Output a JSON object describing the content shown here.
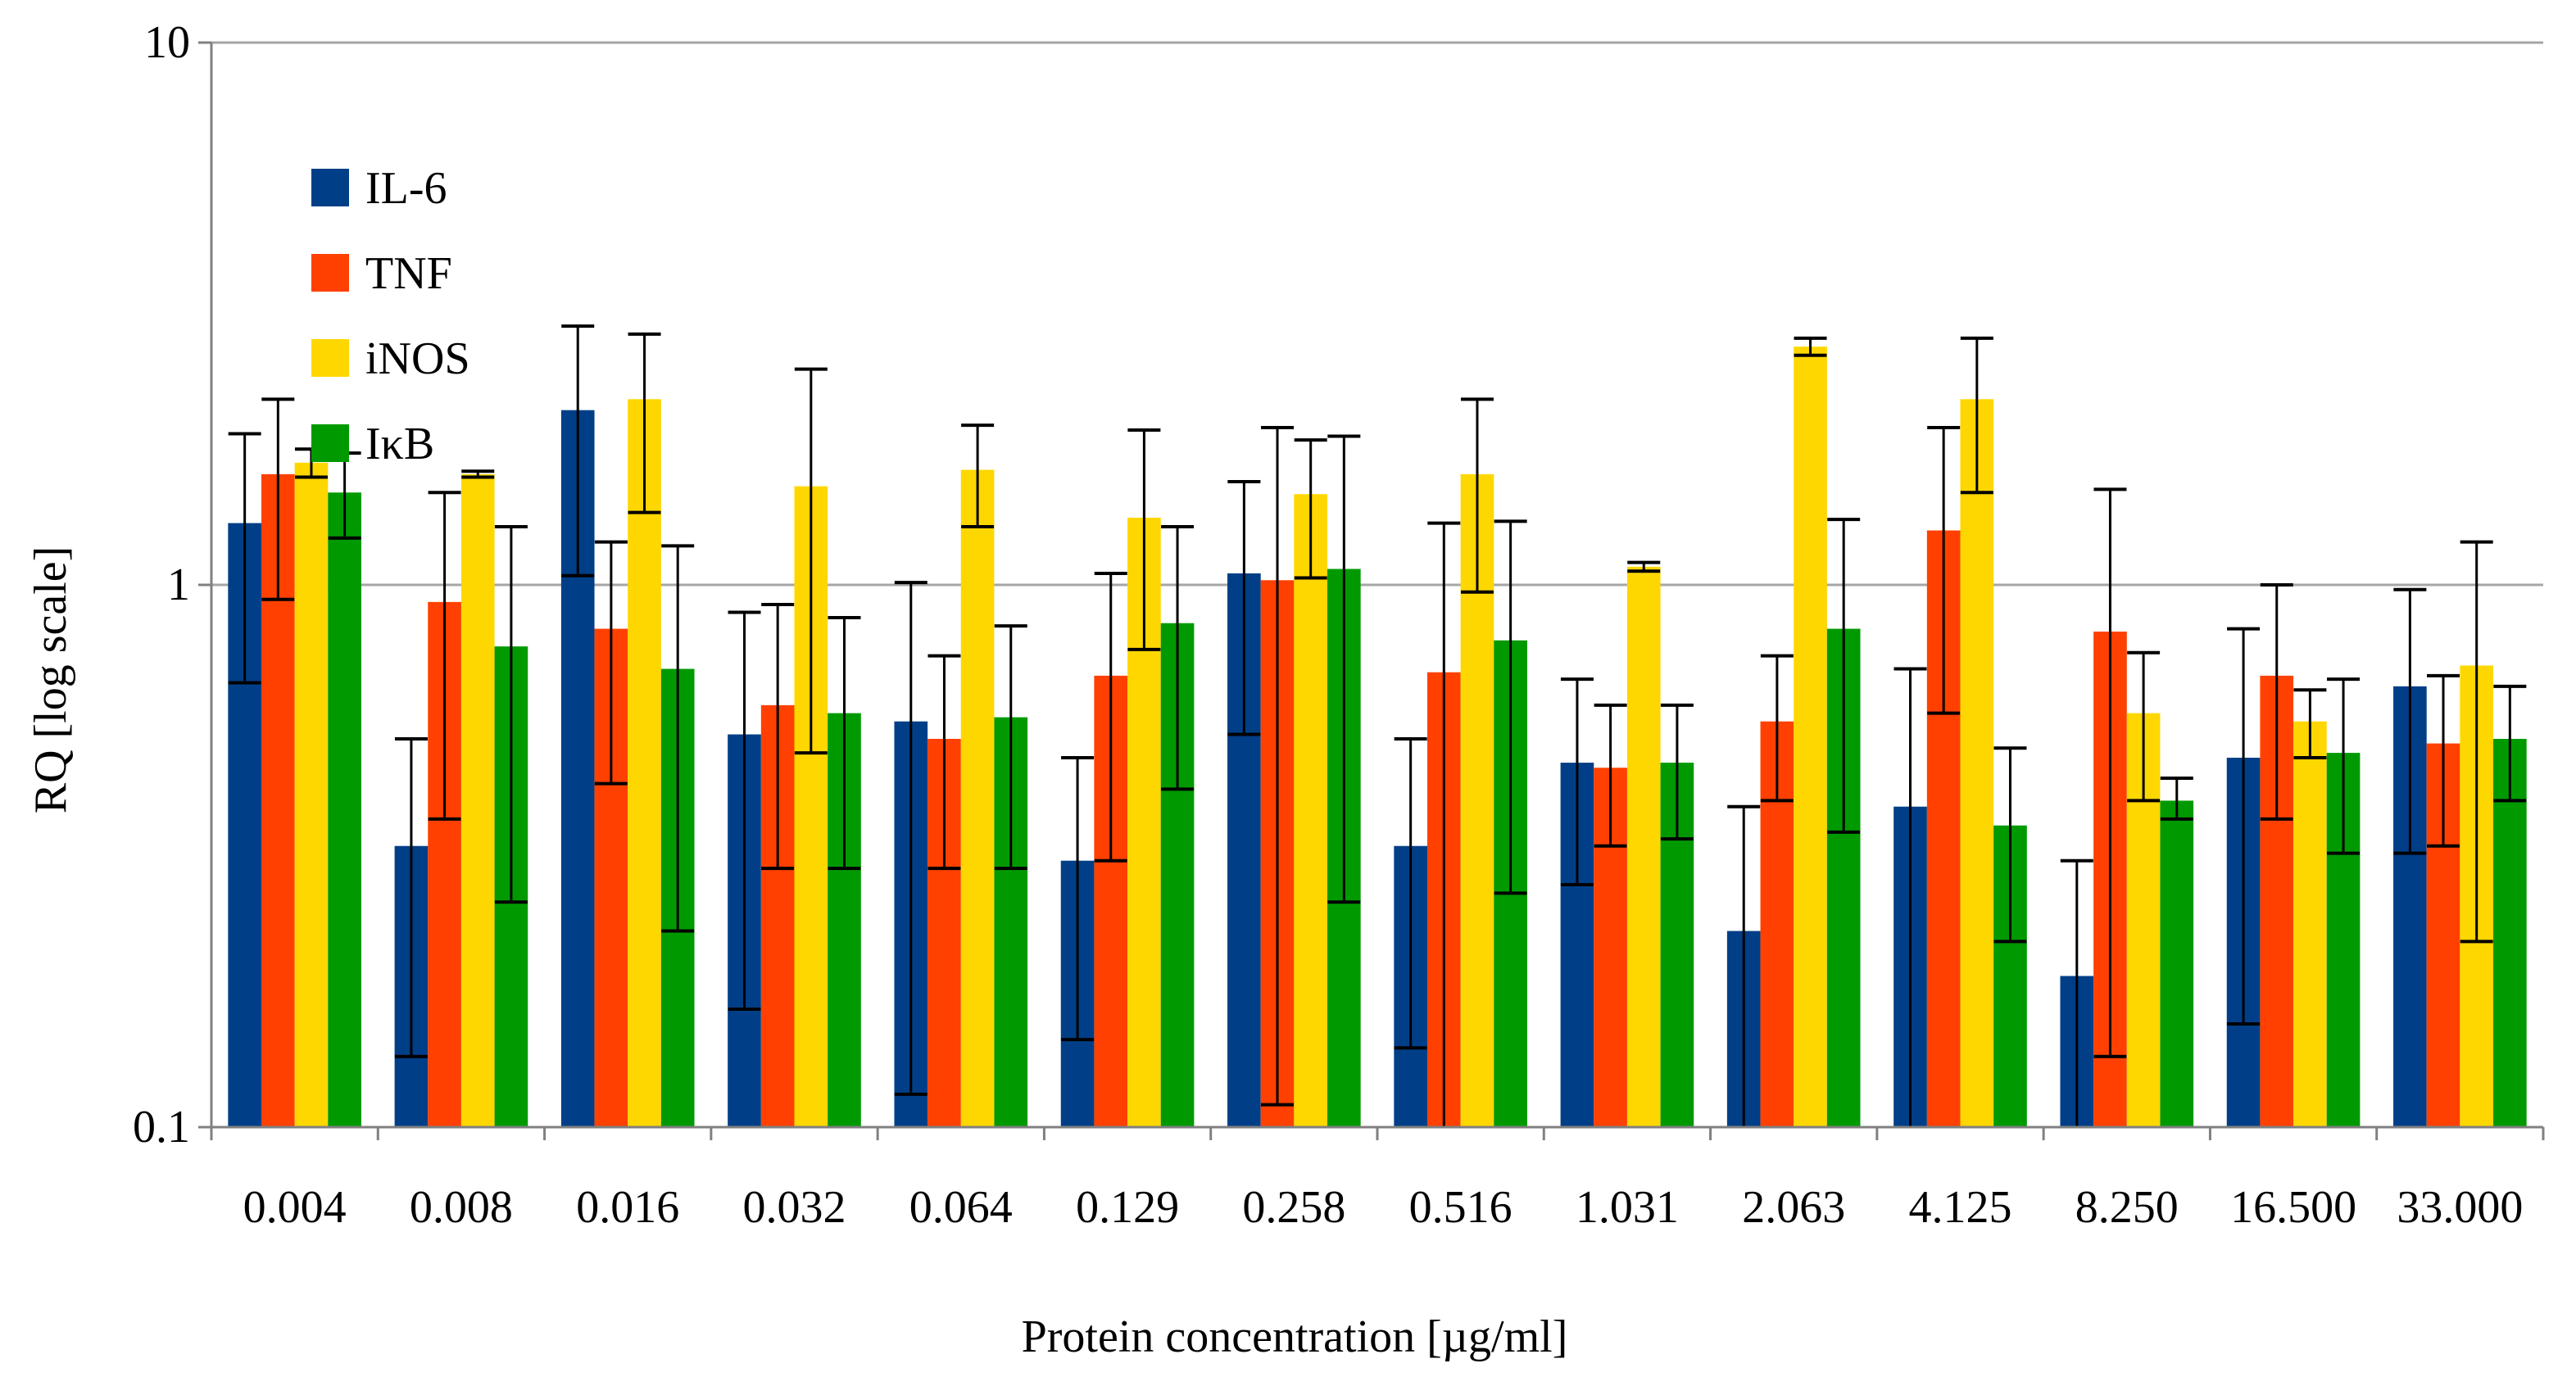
{
  "chart_data": {
    "type": "bar",
    "title": "",
    "xlabel": "Protein concentration [µg/ml]",
    "ylabel": "RQ [log scale]",
    "yscale": "log",
    "ylim": [
      0.1,
      10
    ],
    "yticks": [
      "0.1",
      "1",
      "10"
    ],
    "grid": "horizontal major lines",
    "legend_position": "top-left inside plot",
    "categories": [
      "0.004",
      "0.008",
      "0.016",
      "0.032",
      "0.064",
      "0.129",
      "0.258",
      "0.516",
      "1.031",
      "2.063",
      "4.125",
      "8.250",
      "16.500",
      "33.000"
    ],
    "series": [
      {
        "name": "IL-6",
        "color": "#003f87",
        "values": [
          1.3,
          0.33,
          2.1,
          0.53,
          0.56,
          0.31,
          1.05,
          0.33,
          0.47,
          0.23,
          0.39,
          0.19,
          0.48,
          0.65
        ],
        "err_low": [
          0.66,
          0.135,
          1.04,
          0.165,
          0.115,
          0.145,
          0.53,
          0.14,
          0.28,
          0.05,
          0.05,
          0.05,
          0.155,
          0.32
        ],
        "err_high": [
          1.9,
          0.52,
          3.0,
          0.89,
          1.01,
          0.48,
          1.55,
          0.52,
          0.67,
          0.39,
          0.7,
          0.31,
          0.83,
          0.98
        ]
      },
      {
        "name": "TNF",
        "color": "#ff4000",
        "values": [
          1.6,
          0.93,
          0.83,
          0.6,
          0.52,
          0.68,
          1.02,
          0.69,
          0.46,
          0.56,
          1.26,
          0.82,
          0.68,
          0.51
        ],
        "err_low": [
          0.94,
          0.37,
          0.43,
          0.3,
          0.3,
          0.31,
          0.11,
          0.05,
          0.33,
          0.4,
          0.58,
          0.135,
          0.37,
          0.33
        ],
        "err_high": [
          2.2,
          1.48,
          1.2,
          0.92,
          0.74,
          1.05,
          1.95,
          1.3,
          0.6,
          0.74,
          1.95,
          1.5,
          1.0,
          0.68
        ]
      },
      {
        "name": "iNOS",
        "color": "#ffd700",
        "values": [
          1.68,
          1.6,
          2.2,
          1.52,
          1.63,
          1.33,
          1.47,
          1.6,
          1.08,
          2.75,
          2.2,
          0.58,
          0.56,
          0.71
        ],
        "err_low": [
          1.58,
          1.58,
          1.36,
          0.49,
          1.28,
          0.76,
          1.03,
          0.97,
          1.06,
          2.65,
          1.48,
          0.4,
          0.48,
          0.22
        ],
        "err_high": [
          1.78,
          1.62,
          2.9,
          2.5,
          1.97,
          1.93,
          1.85,
          2.2,
          1.1,
          2.85,
          2.85,
          0.75,
          0.64,
          1.2
        ]
      },
      {
        "name": "IκB",
        "color": "#009a00",
        "values": [
          1.48,
          0.77,
          0.7,
          0.58,
          0.57,
          0.85,
          1.07,
          0.79,
          0.47,
          0.83,
          0.36,
          0.4,
          0.49,
          0.52
        ],
        "err_low": [
          1.22,
          0.26,
          0.23,
          0.3,
          0.3,
          0.42,
          0.26,
          0.27,
          0.34,
          0.35,
          0.22,
          0.37,
          0.32,
          0.4
        ],
        "err_high": [
          1.75,
          1.28,
          1.18,
          0.87,
          0.84,
          1.28,
          1.88,
          1.31,
          0.6,
          1.32,
          0.5,
          0.44,
          0.67,
          0.65
        ]
      }
    ]
  }
}
